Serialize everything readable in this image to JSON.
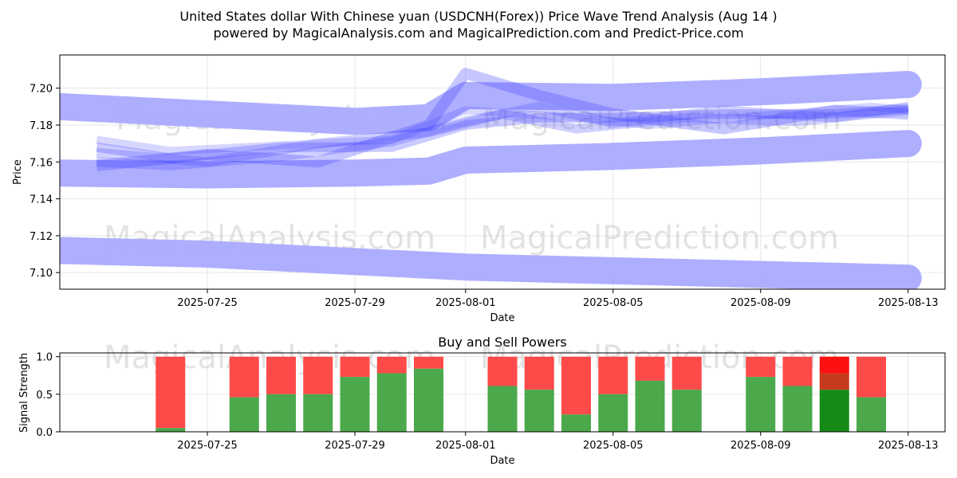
{
  "header": {
    "title": "United States dollar With Chinese yuan (USDCNH(Forex)) Price Wave Trend Analysis (Aug 14 )",
    "subtitle": "powered by MagicalAnalysis.com and MagicalPrediction.com and Predict-Price.com"
  },
  "watermarks": [
    "MagicalAnalysis.com",
    "MagicalPrediction.com"
  ],
  "chart_data": [
    {
      "type": "line",
      "title": "",
      "xlabel": "Date",
      "ylabel": "Price",
      "xlim": [
        "2025-07-21",
        "2025-08-14"
      ],
      "ylim": [
        7.091,
        7.218
      ],
      "x_ticks": [
        "2025-07-25",
        "2025-07-29",
        "2025-08-01",
        "2025-08-05",
        "2025-08-09",
        "2025-08-13"
      ],
      "y_ticks": [
        7.1,
        7.12,
        7.14,
        7.16,
        7.18,
        7.2
      ],
      "grid": true,
      "band_color": "#aaaaff",
      "series": [
        {
          "x": [
            "2025-07-21",
            "2025-07-25",
            "2025-07-29",
            "2025-07-31",
            "2025-08-01",
            "2025-08-05",
            "2025-08-09",
            "2025-08-13"
          ],
          "values": [
            7.19,
            7.186,
            7.182,
            7.184,
            7.196,
            7.195,
            7.198,
            7.202
          ]
        },
        {
          "x": [
            "2025-07-21",
            "2025-07-25",
            "2025-07-29",
            "2025-07-31",
            "2025-08-01",
            "2025-08-05",
            "2025-08-09",
            "2025-08-13"
          ],
          "values": [
            7.154,
            7.153,
            7.154,
            7.155,
            7.161,
            7.163,
            7.166,
            7.17
          ]
        },
        {
          "x": [
            "2025-07-21",
            "2025-07-25",
            "2025-07-29",
            "2025-08-01",
            "2025-08-05",
            "2025-08-09",
            "2025-08-13"
          ],
          "values": [
            7.112,
            7.11,
            7.106,
            7.103,
            7.101,
            7.099,
            7.097
          ]
        },
        {
          "x": [
            "2025-07-22",
            "2025-07-24",
            "2025-07-27",
            "2025-07-30",
            "2025-08-01",
            "2025-08-03",
            "2025-08-05",
            "2025-08-08",
            "2025-08-11",
            "2025-08-13"
          ],
          "values": [
            7.168,
            7.162,
            7.168,
            7.168,
            7.18,
            7.184,
            7.184,
            7.186,
            7.186,
            7.189
          ]
        },
        {
          "x": [
            "2025-07-22",
            "2025-07-24",
            "2025-07-27",
            "2025-07-30",
            "2025-08-01",
            "2025-08-03",
            "2025-08-05",
            "2025-08-08",
            "2025-08-11",
            "2025-08-13"
          ],
          "values": [
            7.16,
            7.158,
            7.163,
            7.171,
            7.182,
            7.19,
            7.181,
            7.188,
            7.184,
            7.19
          ]
        },
        {
          "x": [
            "2025-07-22",
            "2025-07-25",
            "2025-07-28",
            "2025-07-31",
            "2025-08-02",
            "2025-08-04",
            "2025-08-07",
            "2025-08-10",
            "2025-08-13"
          ],
          "values": [
            7.165,
            7.16,
            7.17,
            7.176,
            7.186,
            7.178,
            7.184,
            7.182,
            7.188
          ]
        },
        {
          "x": [
            "2025-07-22",
            "2025-07-24",
            "2025-07-27",
            "2025-07-30",
            "2025-08-01",
            "2025-08-04",
            "2025-08-06",
            "2025-08-09",
            "2025-08-12",
            "2025-08-13"
          ],
          "values": [
            7.172,
            7.166,
            7.169,
            7.172,
            7.188,
            7.184,
            7.18,
            7.185,
            7.19,
            7.188
          ]
        },
        {
          "x": [
            "2025-07-22",
            "2025-07-25",
            "2025-07-28",
            "2025-07-31",
            "2025-08-01",
            "2025-08-03",
            "2025-08-05",
            "2025-08-08",
            "2025-08-11",
            "2025-08-13"
          ],
          "values": [
            7.158,
            7.164,
            7.16,
            7.18,
            7.208,
            7.196,
            7.186,
            7.178,
            7.188,
            7.186
          ]
        }
      ]
    },
    {
      "type": "bar",
      "title": "Buy and Sell Powers",
      "xlabel": "Date",
      "ylabel": "Signal Strength",
      "xlim": [
        "2025-07-21",
        "2025-08-14"
      ],
      "ylim": [
        0,
        1.05
      ],
      "x_ticks": [
        "2025-07-25",
        "2025-07-29",
        "2025-08-01",
        "2025-08-05",
        "2025-08-09",
        "2025-08-13"
      ],
      "y_ticks": [
        "0.0",
        "0.5",
        "1.0"
      ],
      "grid": true,
      "buy_color": "#4ba84b",
      "sell_color": "#ff4a4a",
      "highlight_buy_color": "#168a16",
      "highlight_sell_top_color": "#ff1010",
      "highlight_sell_low_color": "#c83a1e",
      "categories": [
        "2025-07-24",
        "2025-07-26",
        "2025-07-27",
        "2025-07-28",
        "2025-07-29",
        "2025-07-30",
        "2025-07-31",
        "2025-08-02",
        "2025-08-03",
        "2025-08-04",
        "2025-08-05",
        "2025-08-06",
        "2025-08-07",
        "2025-08-09",
        "2025-08-10",
        "2025-08-11",
        "2025-08-12"
      ],
      "buy": [
        0.05,
        0.46,
        0.5,
        0.5,
        0.73,
        0.78,
        0.84,
        0.61,
        0.56,
        0.23,
        0.5,
        0.68,
        0.56,
        0.73,
        0.61,
        0.56,
        0.46
      ],
      "highlight_index": 15
    }
  ]
}
